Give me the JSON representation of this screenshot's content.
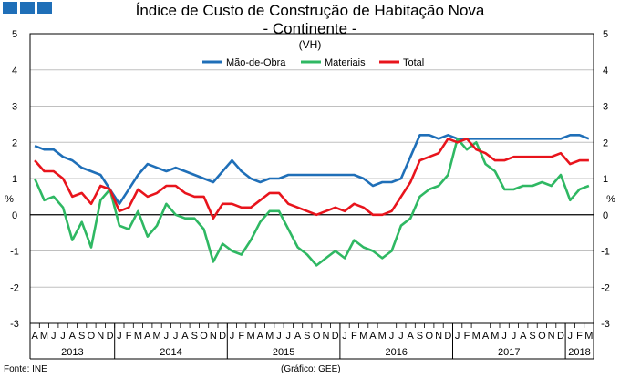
{
  "header": {
    "title": "Índice de Custo de Construção de Habitação Nova",
    "subtitle": "- Continente -",
    "unit_note": "(VH)"
  },
  "footer": {
    "source": "Fonte: INE",
    "graphic": "(Gráfico: GEE)"
  },
  "colors": {
    "logo": "#1f6fb8",
    "grid": "#c0c0c0"
  },
  "chart_data": {
    "type": "line",
    "ylabel_left": "%",
    "ylabel_right": "%",
    "ylim": [
      -3,
      5
    ],
    "y_ticks": [
      5,
      4,
      3,
      2,
      1,
      0,
      -1,
      -2,
      -3
    ],
    "month_labels": [
      "A",
      "M",
      "J",
      "J",
      "A",
      "S",
      "O",
      "N",
      "D",
      "J",
      "F",
      "M",
      "A",
      "M",
      "J",
      "J",
      "A",
      "S",
      "O",
      "N",
      "D",
      "J",
      "F",
      "M",
      "A",
      "M",
      "J",
      "J",
      "A",
      "S",
      "O",
      "N",
      "D",
      "J",
      "F",
      "M",
      "A",
      "M",
      "J",
      "J",
      "A",
      "S",
      "O",
      "N",
      "D",
      "J",
      "F",
      "M",
      "A",
      "M",
      "J",
      "J",
      "A",
      "S",
      "O",
      "N",
      "D",
      "J",
      "F",
      "M"
    ],
    "year_labels": [
      {
        "label": "2013",
        "start": 0,
        "end": 8
      },
      {
        "label": "2014",
        "start": 9,
        "end": 20
      },
      {
        "label": "2015",
        "start": 21,
        "end": 32
      },
      {
        "label": "2016",
        "start": 33,
        "end": 44
      },
      {
        "label": "2017",
        "start": 45,
        "end": 56
      },
      {
        "label": "2018",
        "start": 57,
        "end": 59
      }
    ],
    "series": [
      {
        "name": "Mão-de-Obra",
        "color": "#1f6fb8",
        "values": [
          1.9,
          1.8,
          1.8,
          1.6,
          1.5,
          1.3,
          1.2,
          1.1,
          0.7,
          0.3,
          0.7,
          1.1,
          1.4,
          1.3,
          1.2,
          1.3,
          1.2,
          1.1,
          1.0,
          0.9,
          1.2,
          1.5,
          1.2,
          1.0,
          0.9,
          1.0,
          1.0,
          1.1,
          1.1,
          1.1,
          1.1,
          1.1,
          1.1,
          1.1,
          1.1,
          1.0,
          0.8,
          0.9,
          0.9,
          1.0,
          1.6,
          2.2,
          2.2,
          2.1,
          2.2,
          2.1,
          2.1,
          2.1,
          2.1,
          2.1,
          2.1,
          2.1,
          2.1,
          2.1,
          2.1,
          2.1,
          2.1,
          2.2,
          2.2,
          2.1
        ]
      },
      {
        "name": "Materiais",
        "color": "#2fb863",
        "values": [
          1.0,
          0.4,
          0.5,
          0.2,
          -0.7,
          -0.2,
          -0.9,
          0.4,
          0.7,
          -0.3,
          -0.4,
          0.1,
          -0.6,
          -0.3,
          0.3,
          0.0,
          -0.1,
          -0.1,
          -0.4,
          -1.3,
          -0.8,
          -1.0,
          -1.1,
          -0.7,
          -0.2,
          0.1,
          0.1,
          -0.4,
          -0.9,
          -1.1,
          -1.4,
          -1.2,
          -1.0,
          -1.2,
          -0.7,
          -0.9,
          -1.0,
          -1.2,
          -1.0,
          -0.3,
          -0.1,
          0.5,
          0.7,
          0.8,
          1.1,
          2.1,
          1.8,
          2.0,
          1.4,
          1.2,
          0.7,
          0.7,
          0.8,
          0.8,
          0.9,
          0.8,
          1.1,
          0.4,
          0.7,
          0.8
        ]
      },
      {
        "name": "Total",
        "color": "#e8141c",
        "values": [
          1.5,
          1.2,
          1.2,
          1.0,
          0.5,
          0.6,
          0.3,
          0.8,
          0.7,
          0.1,
          0.2,
          0.7,
          0.5,
          0.6,
          0.8,
          0.8,
          0.6,
          0.5,
          0.5,
          -0.1,
          0.3,
          0.3,
          0.2,
          0.2,
          0.4,
          0.6,
          0.6,
          0.3,
          0.2,
          0.1,
          0.0,
          0.1,
          0.2,
          0.1,
          0.3,
          0.2,
          0.0,
          0.0,
          0.1,
          0.5,
          0.9,
          1.5,
          1.6,
          1.7,
          2.1,
          2.0,
          2.1,
          1.8,
          1.7,
          1.5,
          1.5,
          1.6,
          1.6,
          1.6,
          1.6,
          1.6,
          1.7,
          1.4,
          1.5,
          1.5
        ]
      }
    ]
  }
}
